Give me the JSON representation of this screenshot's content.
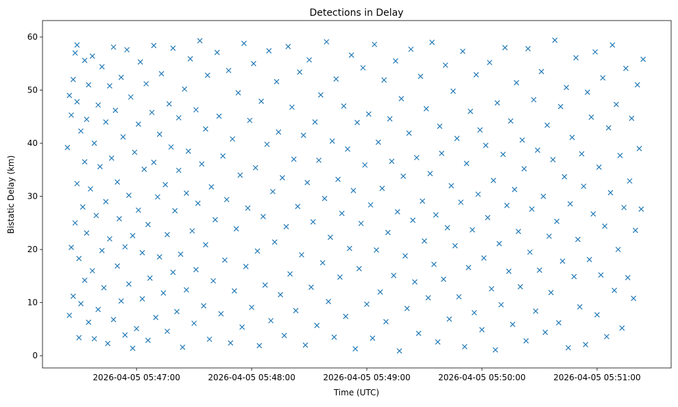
{
  "chart_data": {
    "type": "scatter",
    "title": "Detections in Delay",
    "xlabel": "Time (UTC)",
    "ylabel": "Bistatic Delay (km)",
    "x_units": "seconds relative to 2026-04-05 05:47:00",
    "xlim": [
      -49,
      278.6
    ],
    "ylim": [
      -2.3,
      63.1
    ],
    "grid": false,
    "marker": "x",
    "color": "#1f77b4",
    "xticks": [
      {
        "value": 0,
        "label": "2026-04-05 05:47:00"
      },
      {
        "value": 60,
        "label": "2026-04-05 05:48:00"
      },
      {
        "value": 120,
        "label": "2026-04-05 05:49:00"
      },
      {
        "value": 180,
        "label": "2026-04-05 05:50:00"
      },
      {
        "value": 240,
        "label": "2026-04-05 05:51:00"
      }
    ],
    "yticks": [
      {
        "value": 0,
        "label": "0"
      },
      {
        "value": 10,
        "label": "10"
      },
      {
        "value": 20,
        "label": "20"
      },
      {
        "value": 30,
        "label": "30"
      },
      {
        "value": 40,
        "label": "40"
      },
      {
        "value": 50,
        "label": "50"
      },
      {
        "value": 60,
        "label": "60"
      }
    ],
    "points": [
      [
        -36,
        39.2
      ],
      [
        -35,
        7.6
      ],
      [
        -35,
        49
      ],
      [
        -34,
        45.3
      ],
      [
        -34,
        20.4
      ],
      [
        -33,
        52
      ],
      [
        -33,
        11.2
      ],
      [
        -32,
        57
      ],
      [
        -32,
        25
      ],
      [
        -31,
        58.5
      ],
      [
        -31,
        47.8
      ],
      [
        -31,
        32.4
      ],
      [
        -30,
        18.3
      ],
      [
        -30,
        3.4
      ],
      [
        -29,
        42.3
      ],
      [
        -29,
        9.8
      ],
      [
        -28,
        28
      ],
      [
        -27,
        55.6
      ],
      [
        -27,
        36.5
      ],
      [
        -27,
        14.2
      ],
      [
        -26,
        44.5
      ],
      [
        -26,
        23.1
      ],
      [
        -25,
        6.3
      ],
      [
        -25,
        51
      ],
      [
        -24,
        31.4
      ],
      [
        -23,
        16
      ],
      [
        -23,
        56.4
      ],
      [
        -22,
        3.2
      ],
      [
        -22,
        40
      ],
      [
        -21,
        26.4
      ],
      [
        -20,
        47.2
      ],
      [
        -20,
        8.7
      ],
      [
        -19,
        35.6
      ],
      [
        -18,
        19.8
      ],
      [
        -18,
        54.4
      ],
      [
        -17,
        12.8
      ],
      [
        -16,
        44
      ],
      [
        -16,
        29
      ],
      [
        -15,
        2.3
      ],
      [
        -14,
        50.8
      ],
      [
        -14,
        22
      ],
      [
        -13,
        37.2
      ],
      [
        -12,
        6.8
      ],
      [
        -12,
        58.1
      ],
      [
        -11,
        46.2
      ],
      [
        -10,
        16.9
      ],
      [
        -10,
        32.7
      ],
      [
        -9,
        25.8
      ],
      [
        -8,
        10.3
      ],
      [
        -8,
        52.4
      ],
      [
        -7,
        41.2
      ],
      [
        -6,
        3.9
      ],
      [
        -6,
        20.5
      ],
      [
        -5,
        57.6
      ],
      [
        -4,
        30.2
      ],
      [
        -4,
        13.5
      ],
      [
        -3,
        48.7
      ],
      [
        -2,
        1.4
      ],
      [
        -2,
        22.6
      ],
      [
        -1,
        38.3
      ],
      [
        0,
        5.1
      ],
      [
        1,
        43.6
      ],
      [
        1,
        27.4
      ],
      [
        2,
        55.3
      ],
      [
        3,
        10.7
      ],
      [
        3,
        19.4
      ],
      [
        4,
        35.1
      ],
      [
        5,
        51.2
      ],
      [
        6,
        2.9
      ],
      [
        6,
        24.7
      ],
      [
        7,
        14.6
      ],
      [
        8,
        45.8
      ],
      [
        9,
        36.4
      ],
      [
        9,
        58.4
      ],
      [
        10,
        7.2
      ],
      [
        11,
        29.9
      ],
      [
        12,
        18.6
      ],
      [
        12,
        41.7
      ],
      [
        13,
        53.1
      ],
      [
        14,
        11.8
      ],
      [
        15,
        32.2
      ],
      [
        16,
        4.6
      ],
      [
        16,
        22.8
      ],
      [
        17,
        47.4
      ],
      [
        18,
        39.3
      ],
      [
        19,
        15.7
      ],
      [
        19,
        57.9
      ],
      [
        20,
        27.3
      ],
      [
        21,
        8.3
      ],
      [
        22,
        44.8
      ],
      [
        22,
        34.9
      ],
      [
        23,
        19.1
      ],
      [
        24,
        1.6
      ],
      [
        25,
        50.2
      ],
      [
        26,
        30.6
      ],
      [
        26,
        12.4
      ],
      [
        27,
        38.5
      ],
      [
        28,
        55.9
      ],
      [
        29,
        23.5
      ],
      [
        30,
        6.1
      ],
      [
        31,
        46.3
      ],
      [
        31,
        16.2
      ],
      [
        32,
        28.7
      ],
      [
        33,
        59.3
      ],
      [
        34,
        36.1
      ],
      [
        35,
        9.4
      ],
      [
        36,
        20.9
      ],
      [
        36,
        42.7
      ],
      [
        37,
        52.8
      ],
      [
        38,
        3.1
      ],
      [
        39,
        31.8
      ],
      [
        40,
        14.1
      ],
      [
        41,
        25.6
      ],
      [
        42,
        57.1
      ],
      [
        43,
        45.1
      ],
      [
        44,
        7.9
      ],
      [
        45,
        37.6
      ],
      [
        46,
        18
      ],
      [
        47,
        29.4
      ],
      [
        48,
        53.7
      ],
      [
        49,
        2.4
      ],
      [
        50,
        40.8
      ],
      [
        51,
        12.2
      ],
      [
        52,
        23.9
      ],
      [
        53,
        49.5
      ],
      [
        54,
        34
      ],
      [
        55,
        5.4
      ],
      [
        56,
        58.8
      ],
      [
        57,
        16.8
      ],
      [
        58,
        27.8
      ],
      [
        59,
        44.3
      ],
      [
        60,
        9.1
      ],
      [
        61,
        55
      ],
      [
        62,
        35.4
      ],
      [
        63,
        19.7
      ],
      [
        64,
        1.9
      ],
      [
        65,
        47.9
      ],
      [
        66,
        26.2
      ],
      [
        67,
        13.3
      ],
      [
        68,
        39.8
      ],
      [
        69,
        57.4
      ],
      [
        70,
        6.6
      ],
      [
        71,
        30.9
      ],
      [
        72,
        21.4
      ],
      [
        73,
        51.6
      ],
      [
        74,
        42.1
      ],
      [
        75,
        11.5
      ],
      [
        76,
        33.5
      ],
      [
        77,
        3.8
      ],
      [
        78,
        24.3
      ],
      [
        79,
        58.2
      ],
      [
        80,
        15.4
      ],
      [
        81,
        46.8
      ],
      [
        82,
        37
      ],
      [
        83,
        8.5
      ],
      [
        84,
        28.1
      ],
      [
        85,
        53.4
      ],
      [
        86,
        19
      ],
      [
        87,
        41.5
      ],
      [
        88,
        2
      ],
      [
        89,
        32.6
      ],
      [
        90,
        55.7
      ],
      [
        91,
        12.9
      ],
      [
        92,
        25.2
      ],
      [
        93,
        44
      ],
      [
        94,
        5.7
      ],
      [
        95,
        36.8
      ],
      [
        96,
        49.1
      ],
      [
        97,
        17.5
      ],
      [
        98,
        29.6
      ],
      [
        99,
        59.1
      ],
      [
        100,
        10.2
      ],
      [
        101,
        22.3
      ],
      [
        102,
        40.4
      ],
      [
        103,
        3.5
      ],
      [
        104,
        52.1
      ],
      [
        105,
        33.2
      ],
      [
        106,
        14.8
      ],
      [
        107,
        26.8
      ],
      [
        108,
        47
      ],
      [
        109,
        7.4
      ],
      [
        110,
        38.9
      ],
      [
        111,
        20.2
      ],
      [
        112,
        56.6
      ],
      [
        113,
        31.1
      ],
      [
        114,
        1.3
      ],
      [
        115,
        43.9
      ],
      [
        116,
        16.4
      ],
      [
        117,
        24.9
      ],
      [
        118,
        54.2
      ],
      [
        119,
        35.9
      ],
      [
        120,
        9.7
      ],
      [
        121,
        45.5
      ],
      [
        122,
        28.4
      ],
      [
        123,
        3.3
      ],
      [
        124,
        58.6
      ],
      [
        125,
        19.9
      ],
      [
        126,
        40.2
      ],
      [
        127,
        12
      ],
      [
        128,
        31.5
      ],
      [
        129,
        51.9
      ],
      [
        130,
        6.4
      ],
      [
        131,
        23.2
      ],
      [
        132,
        44.6
      ],
      [
        133,
        36.6
      ],
      [
        134,
        15.1
      ],
      [
        135,
        55.5
      ],
      [
        136,
        27.1
      ],
      [
        137,
        0.9
      ],
      [
        138,
        48.4
      ],
      [
        139,
        33.8
      ],
      [
        140,
        18.8
      ],
      [
        141,
        8.9
      ],
      [
        142,
        41.9
      ],
      [
        143,
        57.7
      ],
      [
        144,
        25.5
      ],
      [
        145,
        13.9
      ],
      [
        146,
        37.3
      ],
      [
        147,
        4.2
      ],
      [
        148,
        52.6
      ],
      [
        149,
        29.1
      ],
      [
        150,
        21.6
      ],
      [
        151,
        46.5
      ],
      [
        152,
        10.9
      ],
      [
        153,
        34.3
      ],
      [
        154,
        59
      ],
      [
        155,
        17.2
      ],
      [
        156,
        26.5
      ],
      [
        157,
        2.6
      ],
      [
        158,
        43.2
      ],
      [
        159,
        38.1
      ],
      [
        160,
        14.4
      ],
      [
        161,
        54.7
      ],
      [
        162,
        24.1
      ],
      [
        163,
        6.9
      ],
      [
        164,
        32
      ],
      [
        165,
        49.8
      ],
      [
        166,
        20.7
      ],
      [
        167,
        40.9
      ],
      [
        168,
        11.1
      ],
      [
        169,
        28.9
      ],
      [
        170,
        57.3
      ],
      [
        171,
        1.7
      ],
      [
        172,
        36.2
      ],
      [
        173,
        16.6
      ],
      [
        174,
        46
      ],
      [
        175,
        23.7
      ],
      [
        176,
        8.1
      ],
      [
        177,
        52.9
      ],
      [
        178,
        30.4
      ],
      [
        179,
        42.5
      ],
      [
        180,
        4.9
      ],
      [
        181,
        18.4
      ],
      [
        182,
        39.6
      ],
      [
        183,
        26
      ],
      [
        184,
        55.2
      ],
      [
        185,
        12.6
      ],
      [
        186,
        33
      ],
      [
        187,
        1.1
      ],
      [
        188,
        47.6
      ],
      [
        189,
        21.1
      ],
      [
        190,
        9.6
      ],
      [
        191,
        37.9
      ],
      [
        192,
        58
      ],
      [
        193,
        28.3
      ],
      [
        194,
        15.9
      ],
      [
        195,
        44.2
      ],
      [
        196,
        5.9
      ],
      [
        197,
        31.3
      ],
      [
        198,
        51.4
      ],
      [
        199,
        23.4
      ],
      [
        200,
        13
      ],
      [
        201,
        40.6
      ],
      [
        202,
        35.2
      ],
      [
        203,
        2.8
      ],
      [
        204,
        57.8
      ],
      [
        205,
        19.5
      ],
      [
        206,
        27.6
      ],
      [
        207,
        48.2
      ],
      [
        208,
        8.4
      ],
      [
        209,
        38.7
      ],
      [
        210,
        16.1
      ],
      [
        211,
        53.5
      ],
      [
        212,
        30
      ],
      [
        213,
        4.4
      ],
      [
        214,
        43.4
      ],
      [
        215,
        22.5
      ],
      [
        216,
        11.9
      ],
      [
        217,
        36.9
      ],
      [
        218,
        59.4
      ],
      [
        219,
        25.3
      ],
      [
        220,
        6.2
      ],
      [
        221,
        46.9
      ],
      [
        222,
        17.8
      ],
      [
        223,
        33.7
      ],
      [
        224,
        50.5
      ],
      [
        225,
        1.5
      ],
      [
        226,
        28.6
      ],
      [
        227,
        41.1
      ],
      [
        228,
        14.9
      ],
      [
        229,
        56.1
      ],
      [
        230,
        21.9
      ],
      [
        231,
        9.2
      ],
      [
        232,
        38
      ],
      [
        233,
        31.9
      ],
      [
        234,
        2.1
      ],
      [
        235,
        49.6
      ],
      [
        236,
        18.1
      ],
      [
        237,
        44.9
      ],
      [
        238,
        26.7
      ],
      [
        239,
        57.2
      ],
      [
        240,
        7.7
      ],
      [
        241,
        35.5
      ],
      [
        242,
        15.2
      ],
      [
        243,
        52.3
      ],
      [
        244,
        24.4
      ],
      [
        245,
        3.6
      ],
      [
        246,
        42.9
      ],
      [
        247,
        30.7
      ],
      [
        248,
        58.5
      ],
      [
        249,
        12.3
      ],
      [
        250,
        47.3
      ],
      [
        251,
        20
      ],
      [
        252,
        37.7
      ],
      [
        253,
        5.2
      ],
      [
        254,
        27.9
      ],
      [
        255,
        54.1
      ],
      [
        256,
        14.7
      ],
      [
        257,
        32.9
      ],
      [
        258,
        44.7
      ],
      [
        259,
        10.8
      ],
      [
        260,
        23.6
      ],
      [
        261,
        51
      ],
      [
        262,
        39
      ],
      [
        263,
        27.6
      ],
      [
        264,
        55.8
      ]
    ]
  }
}
